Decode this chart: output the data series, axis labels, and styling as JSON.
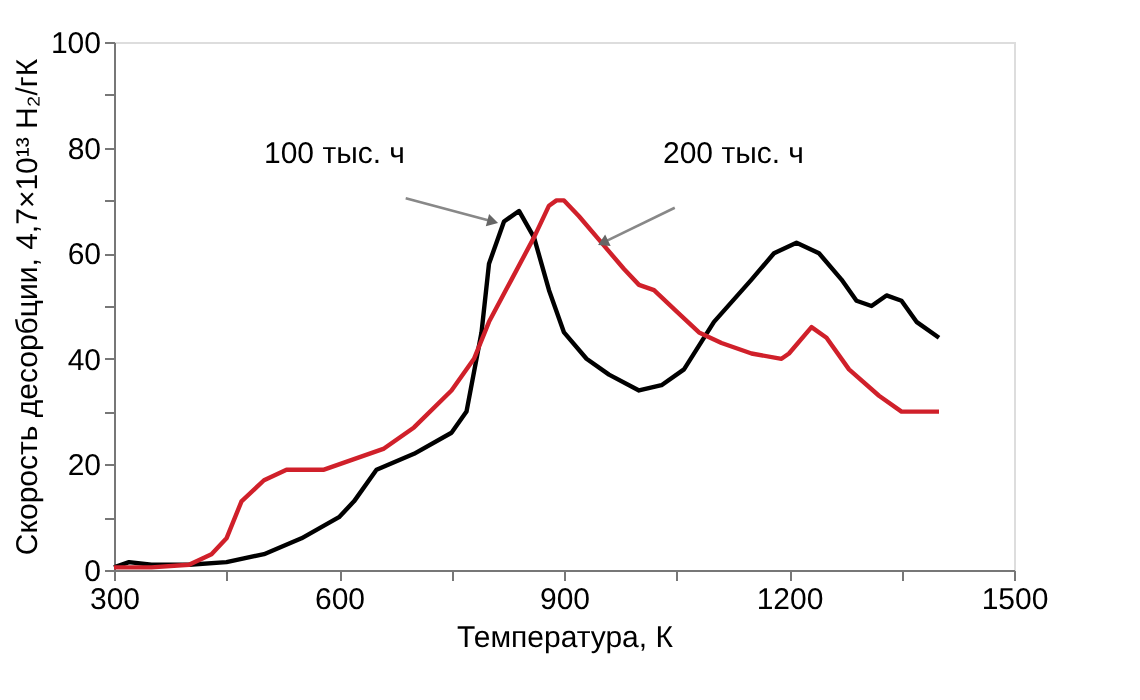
{
  "chart_data": {
    "type": "line",
    "xlabel": "Температура, К",
    "ylabel": "Скорость десорбции, 4,7×10¹³ H₂/гК",
    "xlim": [
      300,
      1500
    ],
    "ylim": [
      0,
      100
    ],
    "xticks": [
      300,
      {
        "value": 450,
        "label": null
      },
      600,
      {
        "value": 750,
        "label": null
      },
      900,
      {
        "value": 1050,
        "label": null
      },
      1200,
      {
        "value": 1350,
        "label": null
      },
      1500
    ],
    "yticks": [
      0,
      {
        "value": 10,
        "label": null
      },
      20,
      {
        "value": 30,
        "label": null
      },
      40,
      {
        "value": 50,
        "label": null
      },
      60,
      {
        "value": 70,
        "label": null
      },
      80,
      {
        "value": 90,
        "label": null
      },
      100
    ],
    "grid": false,
    "marker": "none",
    "line_style": "solid",
    "series": [
      {
        "color": "#000000",
        "x": [
          300,
          320,
          350,
          400,
          450,
          500,
          550,
          600,
          620,
          650,
          700,
          750,
          770,
          790,
          800,
          820,
          840,
          860,
          880,
          900,
          930,
          960,
          1000,
          1030,
          1060,
          1100,
          1150,
          1180,
          1210,
          1240,
          1270,
          1290,
          1310,
          1330,
          1350,
          1370,
          1400
        ],
        "values": [
          0.5,
          1.5,
          1,
          1,
          1.5,
          3,
          6,
          10,
          13,
          19,
          22,
          26,
          30,
          45,
          58,
          66,
          68,
          63,
          53,
          45,
          40,
          37,
          34,
          35,
          38,
          47,
          55,
          60,
          62,
          60,
          55,
          51,
          50,
          52,
          51,
          47,
          44
        ]
      },
      {
        "color": "#d0202a",
        "x": [
          300,
          350,
          400,
          430,
          450,
          470,
          500,
          530,
          580,
          620,
          660,
          700,
          750,
          780,
          800,
          830,
          860,
          880,
          890,
          900,
          920,
          950,
          980,
          1000,
          1020,
          1050,
          1080,
          1110,
          1150,
          1190,
          1200,
          1230,
          1250,
          1280,
          1320,
          1350,
          1370,
          1400
        ],
        "values": [
          0.5,
          0.5,
          1,
          3,
          6,
          13,
          17,
          19,
          19,
          21,
          23,
          27,
          34,
          40,
          47,
          55,
          63,
          69,
          70,
          70,
          67,
          62,
          57,
          54,
          53,
          49,
          45,
          43,
          41,
          40,
          41,
          46,
          44,
          38,
          33,
          30,
          30,
          30
        ]
      }
    ],
    "annotations": [
      {
        "text": "100 тыс. ч",
        "x": 805,
        "y": 66
      },
      {
        "text": "200 тыс. ч",
        "x": 952,
        "y": 62
      }
    ]
  }
}
